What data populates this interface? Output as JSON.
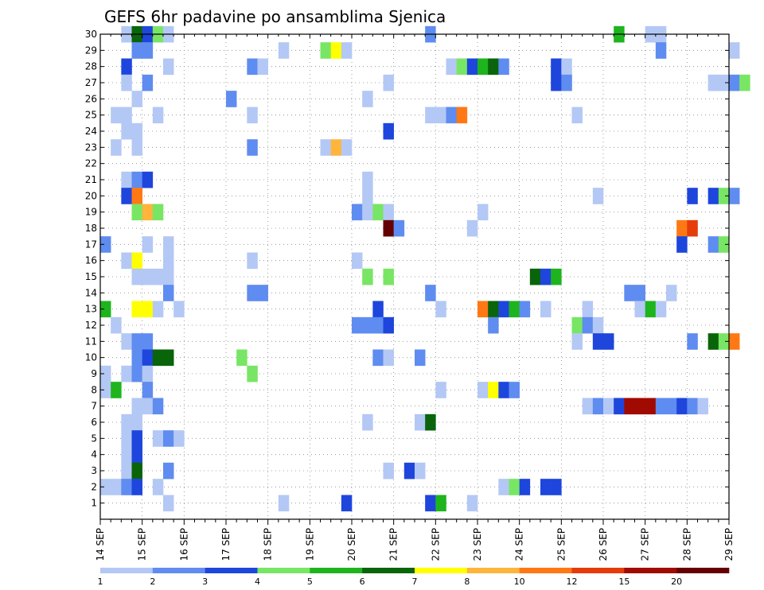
{
  "chart_data": {
    "type": "heatmap",
    "title": "GEFS 6hr padavine po ansamblima Sjenica",
    "x_tick_labels": [
      "14 SEP",
      "15 SEP",
      "16 SEP",
      "17 SEP",
      "18 SEP",
      "19 SEP",
      "20 SEP",
      "21 SEP",
      "22 SEP",
      "23 SEP",
      "24 SEP",
      "25 SEP",
      "26 SEP",
      "27 SEP",
      "28 SEP",
      "29 SEP"
    ],
    "x_ticks_per_day": 4,
    "y_tick_labels": [
      "1",
      "2",
      "3",
      "4",
      "5",
      "6",
      "7",
      "8",
      "9",
      "10",
      "11",
      "12",
      "13",
      "14",
      "15",
      "16",
      "17",
      "18",
      "19",
      "20",
      "21",
      "22",
      "23",
      "24",
      "25",
      "26",
      "27",
      "28",
      "29",
      "30"
    ],
    "ylim": [
      0,
      30
    ],
    "grid": true,
    "colorbar": {
      "labels": [
        "1",
        "2",
        "3",
        "4",
        "5",
        "6",
        "7",
        "8",
        "10",
        "12",
        "15",
        "20"
      ],
      "colors": [
        "#b4c8f5",
        "#5f8cf0",
        "#1e46dc",
        "#78e664",
        "#1eb41e",
        "#0a640a",
        "#ffff00",
        "#ffb43c",
        "#ff7814",
        "#e63c0a",
        "#a00a00",
        "#640000"
      ]
    },
    "cells": [
      {
        "m": 30,
        "x": 2,
        "y": 1
      },
      {
        "m": 30,
        "x": 3,
        "y": 6
      },
      {
        "m": 30,
        "x": 4,
        "y": 3
      },
      {
        "m": 30,
        "x": 5,
        "y": 4
      },
      {
        "m": 30,
        "x": 6,
        "y": 1
      },
      {
        "m": 30,
        "x": 31,
        "y": 2
      },
      {
        "m": 30,
        "x": 49,
        "y": 5
      },
      {
        "m": 30,
        "x": 52,
        "y": 1
      },
      {
        "m": 30,
        "x": 53,
        "y": 1
      },
      {
        "m": 29,
        "x": 3,
        "y": 2
      },
      {
        "m": 29,
        "x": 4,
        "y": 2
      },
      {
        "m": 29,
        "x": 17,
        "y": 1
      },
      {
        "m": 29,
        "x": 21,
        "y": 4
      },
      {
        "m": 29,
        "x": 22,
        "y": 7
      },
      {
        "m": 29,
        "x": 23,
        "y": 1
      },
      {
        "m": 29,
        "x": 53,
        "y": 2
      },
      {
        "m": 29,
        "x": 60,
        "y": 1
      },
      {
        "m": 28,
        "x": 2,
        "y": 3
      },
      {
        "m": 28,
        "x": 6,
        "y": 1
      },
      {
        "m": 28,
        "x": 14,
        "y": 2
      },
      {
        "m": 28,
        "x": 15,
        "y": 1
      },
      {
        "m": 28,
        "x": 33,
        "y": 1
      },
      {
        "m": 28,
        "x": 34,
        "y": 4
      },
      {
        "m": 28,
        "x": 35,
        "y": 3
      },
      {
        "m": 28,
        "x": 36,
        "y": 5
      },
      {
        "m": 28,
        "x": 37,
        "y": 6
      },
      {
        "m": 28,
        "x": 38,
        "y": 2
      },
      {
        "m": 28,
        "x": 43,
        "y": 3
      },
      {
        "m": 28,
        "x": 44,
        "y": 1
      },
      {
        "m": 27,
        "x": 2,
        "y": 1
      },
      {
        "m": 27,
        "x": 4,
        "y": 2
      },
      {
        "m": 27,
        "x": 27,
        "y": 1
      },
      {
        "m": 27,
        "x": 43,
        "y": 3
      },
      {
        "m": 27,
        "x": 44,
        "y": 2
      },
      {
        "m": 27,
        "x": 58,
        "y": 1
      },
      {
        "m": 27,
        "x": 59,
        "y": 1
      },
      {
        "m": 27,
        "x": 60,
        "y": 2
      },
      {
        "m": 27,
        "x": 61,
        "y": 4
      },
      {
        "m": 26,
        "x": 3,
        "y": 1
      },
      {
        "m": 26,
        "x": 12,
        "y": 2
      },
      {
        "m": 26,
        "x": 25,
        "y": 1
      },
      {
        "m": 25,
        "x": 1,
        "y": 1
      },
      {
        "m": 25,
        "x": 2,
        "y": 1
      },
      {
        "m": 25,
        "x": 5,
        "y": 1
      },
      {
        "m": 25,
        "x": 14,
        "y": 1
      },
      {
        "m": 25,
        "x": 31,
        "y": 1
      },
      {
        "m": 25,
        "x": 32,
        "y": 1
      },
      {
        "m": 25,
        "x": 33,
        "y": 2
      },
      {
        "m": 25,
        "x": 34,
        "y": 9
      },
      {
        "m": 25,
        "x": 45,
        "y": 1
      },
      {
        "m": 24,
        "x": 2,
        "y": 1
      },
      {
        "m": 24,
        "x": 3,
        "y": 1
      },
      {
        "m": 24,
        "x": 27,
        "y": 3
      },
      {
        "m": 23,
        "x": 1,
        "y": 1
      },
      {
        "m": 23,
        "x": 3,
        "y": 1
      },
      {
        "m": 23,
        "x": 14,
        "y": 2
      },
      {
        "m": 23,
        "x": 21,
        "y": 1
      },
      {
        "m": 23,
        "x": 22,
        "y": 8
      },
      {
        "m": 23,
        "x": 23,
        "y": 1
      },
      {
        "m": 21,
        "x": 2,
        "y": 1
      },
      {
        "m": 21,
        "x": 3,
        "y": 2
      },
      {
        "m": 21,
        "x": 4,
        "y": 3
      },
      {
        "m": 21,
        "x": 25,
        "y": 1
      },
      {
        "m": 20,
        "x": 2,
        "y": 3
      },
      {
        "m": 20,
        "x": 3,
        "y": 9
      },
      {
        "m": 20,
        "x": 25,
        "y": 1
      },
      {
        "m": 20,
        "x": 47,
        "y": 1
      },
      {
        "m": 20,
        "x": 56,
        "y": 3
      },
      {
        "m": 20,
        "x": 58,
        "y": 3
      },
      {
        "m": 20,
        "x": 59,
        "y": 4
      },
      {
        "m": 20,
        "x": 60,
        "y": 2
      },
      {
        "m": 19,
        "x": 3,
        "y": 4
      },
      {
        "m": 19,
        "x": 4,
        "y": 8
      },
      {
        "m": 19,
        "x": 5,
        "y": 4
      },
      {
        "m": 19,
        "x": 24,
        "y": 2
      },
      {
        "m": 19,
        "x": 25,
        "y": 1
      },
      {
        "m": 19,
        "x": 26,
        "y": 4
      },
      {
        "m": 19,
        "x": 27,
        "y": 1
      },
      {
        "m": 19,
        "x": 36,
        "y": 1
      },
      {
        "m": 18,
        "x": 27,
        "y": 12
      },
      {
        "m": 18,
        "x": 28,
        "y": 2
      },
      {
        "m": 18,
        "x": 35,
        "y": 1
      },
      {
        "m": 18,
        "x": 55,
        "y": 9
      },
      {
        "m": 18,
        "x": 56,
        "y": 10
      },
      {
        "m": 17,
        "x": 0,
        "y": 2
      },
      {
        "m": 17,
        "x": 4,
        "y": 1
      },
      {
        "m": 17,
        "x": 6,
        "y": 1
      },
      {
        "m": 17,
        "x": 55,
        "y": 3
      },
      {
        "m": 17,
        "x": 58,
        "y": 2
      },
      {
        "m": 17,
        "x": 59,
        "y": 4
      },
      {
        "m": 16,
        "x": 2,
        "y": 1
      },
      {
        "m": 16,
        "x": 3,
        "y": 7
      },
      {
        "m": 16,
        "x": 6,
        "y": 1
      },
      {
        "m": 16,
        "x": 14,
        "y": 1
      },
      {
        "m": 16,
        "x": 24,
        "y": 1
      },
      {
        "m": 15,
        "x": 3,
        "y": 1
      },
      {
        "m": 15,
        "x": 4,
        "y": 1
      },
      {
        "m": 15,
        "x": 5,
        "y": 1
      },
      {
        "m": 15,
        "x": 6,
        "y": 1
      },
      {
        "m": 15,
        "x": 25,
        "y": 4
      },
      {
        "m": 15,
        "x": 27,
        "y": 4
      },
      {
        "m": 15,
        "x": 41,
        "y": 6
      },
      {
        "m": 15,
        "x": 42,
        "y": 3
      },
      {
        "m": 15,
        "x": 43,
        "y": 5
      },
      {
        "m": 14,
        "x": 6,
        "y": 2
      },
      {
        "m": 14,
        "x": 14,
        "y": 2
      },
      {
        "m": 14,
        "x": 15,
        "y": 2
      },
      {
        "m": 14,
        "x": 31,
        "y": 2
      },
      {
        "m": 14,
        "x": 50,
        "y": 2
      },
      {
        "m": 14,
        "x": 51,
        "y": 2
      },
      {
        "m": 14,
        "x": 54,
        "y": 1
      },
      {
        "m": 13,
        "x": 0,
        "y": 5
      },
      {
        "m": 13,
        "x": 3,
        "y": 7
      },
      {
        "m": 13,
        "x": 4,
        "y": 7
      },
      {
        "m": 13,
        "x": 5,
        "y": 1
      },
      {
        "m": 13,
        "x": 7,
        "y": 1
      },
      {
        "m": 13,
        "x": 26,
        "y": 3
      },
      {
        "m": 13,
        "x": 32,
        "y": 1
      },
      {
        "m": 13,
        "x": 36,
        "y": 9
      },
      {
        "m": 13,
        "x": 37,
        "y": 6
      },
      {
        "m": 13,
        "x": 38,
        "y": 3
      },
      {
        "m": 13,
        "x": 39,
        "y": 5
      },
      {
        "m": 13,
        "x": 40,
        "y": 2
      },
      {
        "m": 13,
        "x": 42,
        "y": 1
      },
      {
        "m": 13,
        "x": 46,
        "y": 1
      },
      {
        "m": 13,
        "x": 51,
        "y": 1
      },
      {
        "m": 13,
        "x": 52,
        "y": 5
      },
      {
        "m": 13,
        "x": 53,
        "y": 1
      },
      {
        "m": 12,
        "x": 1,
        "y": 1
      },
      {
        "m": 12,
        "x": 24,
        "y": 2
      },
      {
        "m": 12,
        "x": 25,
        "y": 2
      },
      {
        "m": 12,
        "x": 26,
        "y": 2
      },
      {
        "m": 12,
        "x": 27,
        "y": 3
      },
      {
        "m": 12,
        "x": 37,
        "y": 2
      },
      {
        "m": 12,
        "x": 45,
        "y": 4
      },
      {
        "m": 12,
        "x": 46,
        "y": 2
      },
      {
        "m": 12,
        "x": 47,
        "y": 1
      },
      {
        "m": 11,
        "x": 2,
        "y": 1
      },
      {
        "m": 11,
        "x": 3,
        "y": 2
      },
      {
        "m": 11,
        "x": 4,
        "y": 2
      },
      {
        "m": 11,
        "x": 45,
        "y": 1
      },
      {
        "m": 11,
        "x": 47,
        "y": 3
      },
      {
        "m": 11,
        "x": 48,
        "y": 3
      },
      {
        "m": 11,
        "x": 56,
        "y": 2
      },
      {
        "m": 11,
        "x": 58,
        "y": 6
      },
      {
        "m": 11,
        "x": 59,
        "y": 4
      },
      {
        "m": 11,
        "x": 60,
        "y": 9
      },
      {
        "m": 10,
        "x": 3,
        "y": 2
      },
      {
        "m": 10,
        "x": 4,
        "y": 3
      },
      {
        "m": 10,
        "x": 5,
        "y": 6
      },
      {
        "m": 10,
        "x": 6,
        "y": 6
      },
      {
        "m": 10,
        "x": 13,
        "y": 4
      },
      {
        "m": 10,
        "x": 26,
        "y": 2
      },
      {
        "m": 10,
        "x": 27,
        "y": 1
      },
      {
        "m": 10,
        "x": 30,
        "y": 2
      },
      {
        "m": 9,
        "x": 0,
        "y": 1
      },
      {
        "m": 9,
        "x": 2,
        "y": 1
      },
      {
        "m": 9,
        "x": 3,
        "y": 2
      },
      {
        "m": 9,
        "x": 4,
        "y": 1
      },
      {
        "m": 9,
        "x": 14,
        "y": 4
      },
      {
        "m": 8,
        "x": 0,
        "y": 1
      },
      {
        "m": 8,
        "x": 1,
        "y": 5
      },
      {
        "m": 8,
        "x": 4,
        "y": 2
      },
      {
        "m": 8,
        "x": 32,
        "y": 1
      },
      {
        "m": 8,
        "x": 36,
        "y": 1
      },
      {
        "m": 8,
        "x": 37,
        "y": 7
      },
      {
        "m": 8,
        "x": 38,
        "y": 3
      },
      {
        "m": 8,
        "x": 39,
        "y": 2
      },
      {
        "m": 7,
        "x": 3,
        "y": 1
      },
      {
        "m": 7,
        "x": 4,
        "y": 1
      },
      {
        "m": 7,
        "x": 5,
        "y": 2
      },
      {
        "m": 7,
        "x": 46,
        "y": 1
      },
      {
        "m": 7,
        "x": 47,
        "y": 2
      },
      {
        "m": 7,
        "x": 48,
        "y": 1
      },
      {
        "m": 7,
        "x": 49,
        "y": 3
      },
      {
        "m": 7,
        "x": 50,
        "y": 11
      },
      {
        "m": 7,
        "x": 51,
        "y": 11
      },
      {
        "m": 7,
        "x": 52,
        "y": 11
      },
      {
        "m": 7,
        "x": 53,
        "y": 2
      },
      {
        "m": 7,
        "x": 54,
        "y": 2
      },
      {
        "m": 7,
        "x": 55,
        "y": 3
      },
      {
        "m": 7,
        "x": 56,
        "y": 2
      },
      {
        "m": 7,
        "x": 57,
        "y": 1
      },
      {
        "m": 6,
        "x": 2,
        "y": 1
      },
      {
        "m": 6,
        "x": 3,
        "y": 1
      },
      {
        "m": 6,
        "x": 25,
        "y": 1
      },
      {
        "m": 6,
        "x": 30,
        "y": 1
      },
      {
        "m": 6,
        "x": 31,
        "y": 6
      },
      {
        "m": 5,
        "x": 2,
        "y": 1
      },
      {
        "m": 5,
        "x": 3,
        "y": 3
      },
      {
        "m": 5,
        "x": 5,
        "y": 1
      },
      {
        "m": 5,
        "x": 6,
        "y": 2
      },
      {
        "m": 5,
        "x": 7,
        "y": 1
      },
      {
        "m": 4,
        "x": 2,
        "y": 1
      },
      {
        "m": 4,
        "x": 3,
        "y": 3
      },
      {
        "m": 3,
        "x": 2,
        "y": 1
      },
      {
        "m": 3,
        "x": 3,
        "y": 6
      },
      {
        "m": 3,
        "x": 6,
        "y": 2
      },
      {
        "m": 3,
        "x": 27,
        "y": 1
      },
      {
        "m": 3,
        "x": 29,
        "y": 3
      },
      {
        "m": 3,
        "x": 30,
        "y": 1
      },
      {
        "m": 2,
        "x": 0,
        "y": 1
      },
      {
        "m": 2,
        "x": 1,
        "y": 1
      },
      {
        "m": 2,
        "x": 2,
        "y": 2
      },
      {
        "m": 2,
        "x": 3,
        "y": 3
      },
      {
        "m": 2,
        "x": 5,
        "y": 1
      },
      {
        "m": 2,
        "x": 38,
        "y": 1
      },
      {
        "m": 2,
        "x": 39,
        "y": 4
      },
      {
        "m": 2,
        "x": 40,
        "y": 3
      },
      {
        "m": 2,
        "x": 42,
        "y": 3
      },
      {
        "m": 2,
        "x": 43,
        "y": 3
      },
      {
        "m": 1,
        "x": 6,
        "y": 1
      },
      {
        "m": 1,
        "x": 17,
        "y": 1
      },
      {
        "m": 1,
        "x": 23,
        "y": 3
      },
      {
        "m": 1,
        "x": 31,
        "y": 3
      },
      {
        "m": 1,
        "x": 32,
        "y": 5
      },
      {
        "m": 1,
        "x": 35,
        "y": 1
      }
    ]
  }
}
